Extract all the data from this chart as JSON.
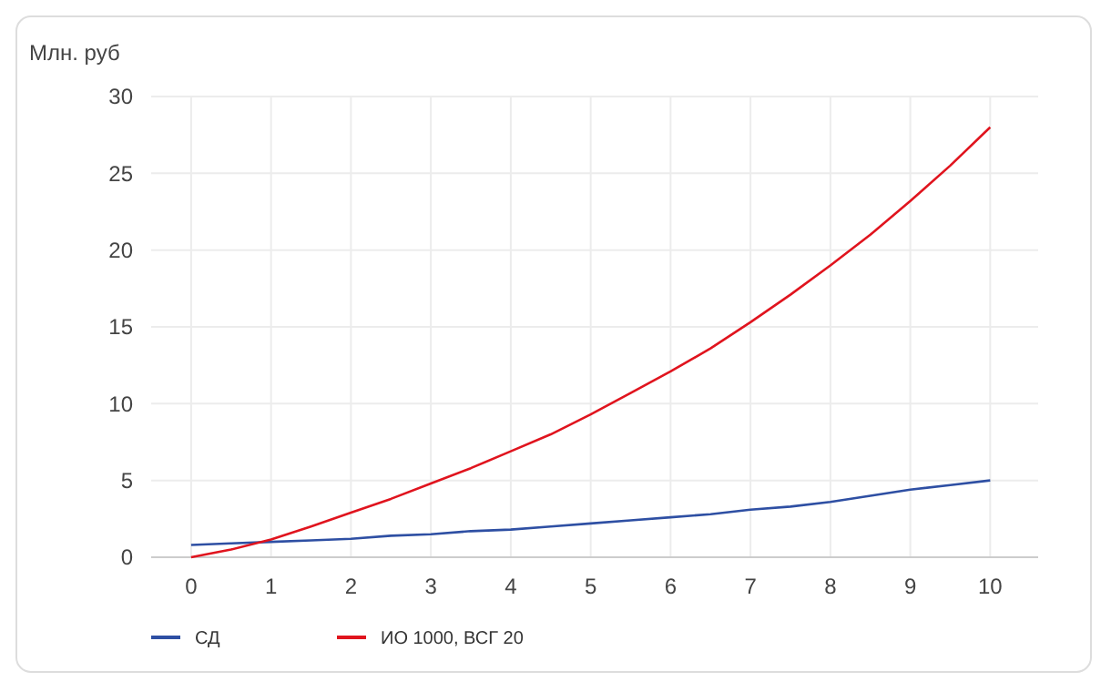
{
  "chart_data": {
    "type": "line",
    "ylabel": "Млн. руб",
    "x": [
      0,
      0.5,
      1,
      1.5,
      2,
      2.5,
      3,
      3.5,
      4,
      4.5,
      5,
      5.5,
      6,
      6.5,
      7,
      7.5,
      8,
      8.5,
      9,
      9.5,
      10
    ],
    "series": [
      {
        "name": "СД",
        "color": "#2e4fa3",
        "values": [
          0.8,
          0.9,
          1.0,
          1.1,
          1.2,
          1.4,
          1.5,
          1.7,
          1.8,
          2.0,
          2.2,
          2.4,
          2.6,
          2.8,
          3.1,
          3.3,
          3.6,
          4.0,
          4.4,
          4.7,
          5.0
        ]
      },
      {
        "name": "ИО 1000, ВСГ 20",
        "color": "#e0141e",
        "values": [
          0,
          0.5,
          1.15,
          2.0,
          2.9,
          3.8,
          4.8,
          5.8,
          6.9,
          8.0,
          9.3,
          10.7,
          12.1,
          13.6,
          15.3,
          17.1,
          19.0,
          21.0,
          23.2,
          25.5,
          28.0
        ]
      }
    ],
    "xlim": [
      -0.5,
      10.6
    ],
    "xticks": [
      0,
      1,
      2,
      3,
      4,
      5,
      6,
      7,
      8,
      9,
      10
    ],
    "ylim": [
      0,
      30
    ],
    "yticks": [
      0,
      5,
      10,
      15,
      20,
      25,
      30
    ],
    "grid": true,
    "legend": "bottom",
    "line_style": "solid"
  }
}
